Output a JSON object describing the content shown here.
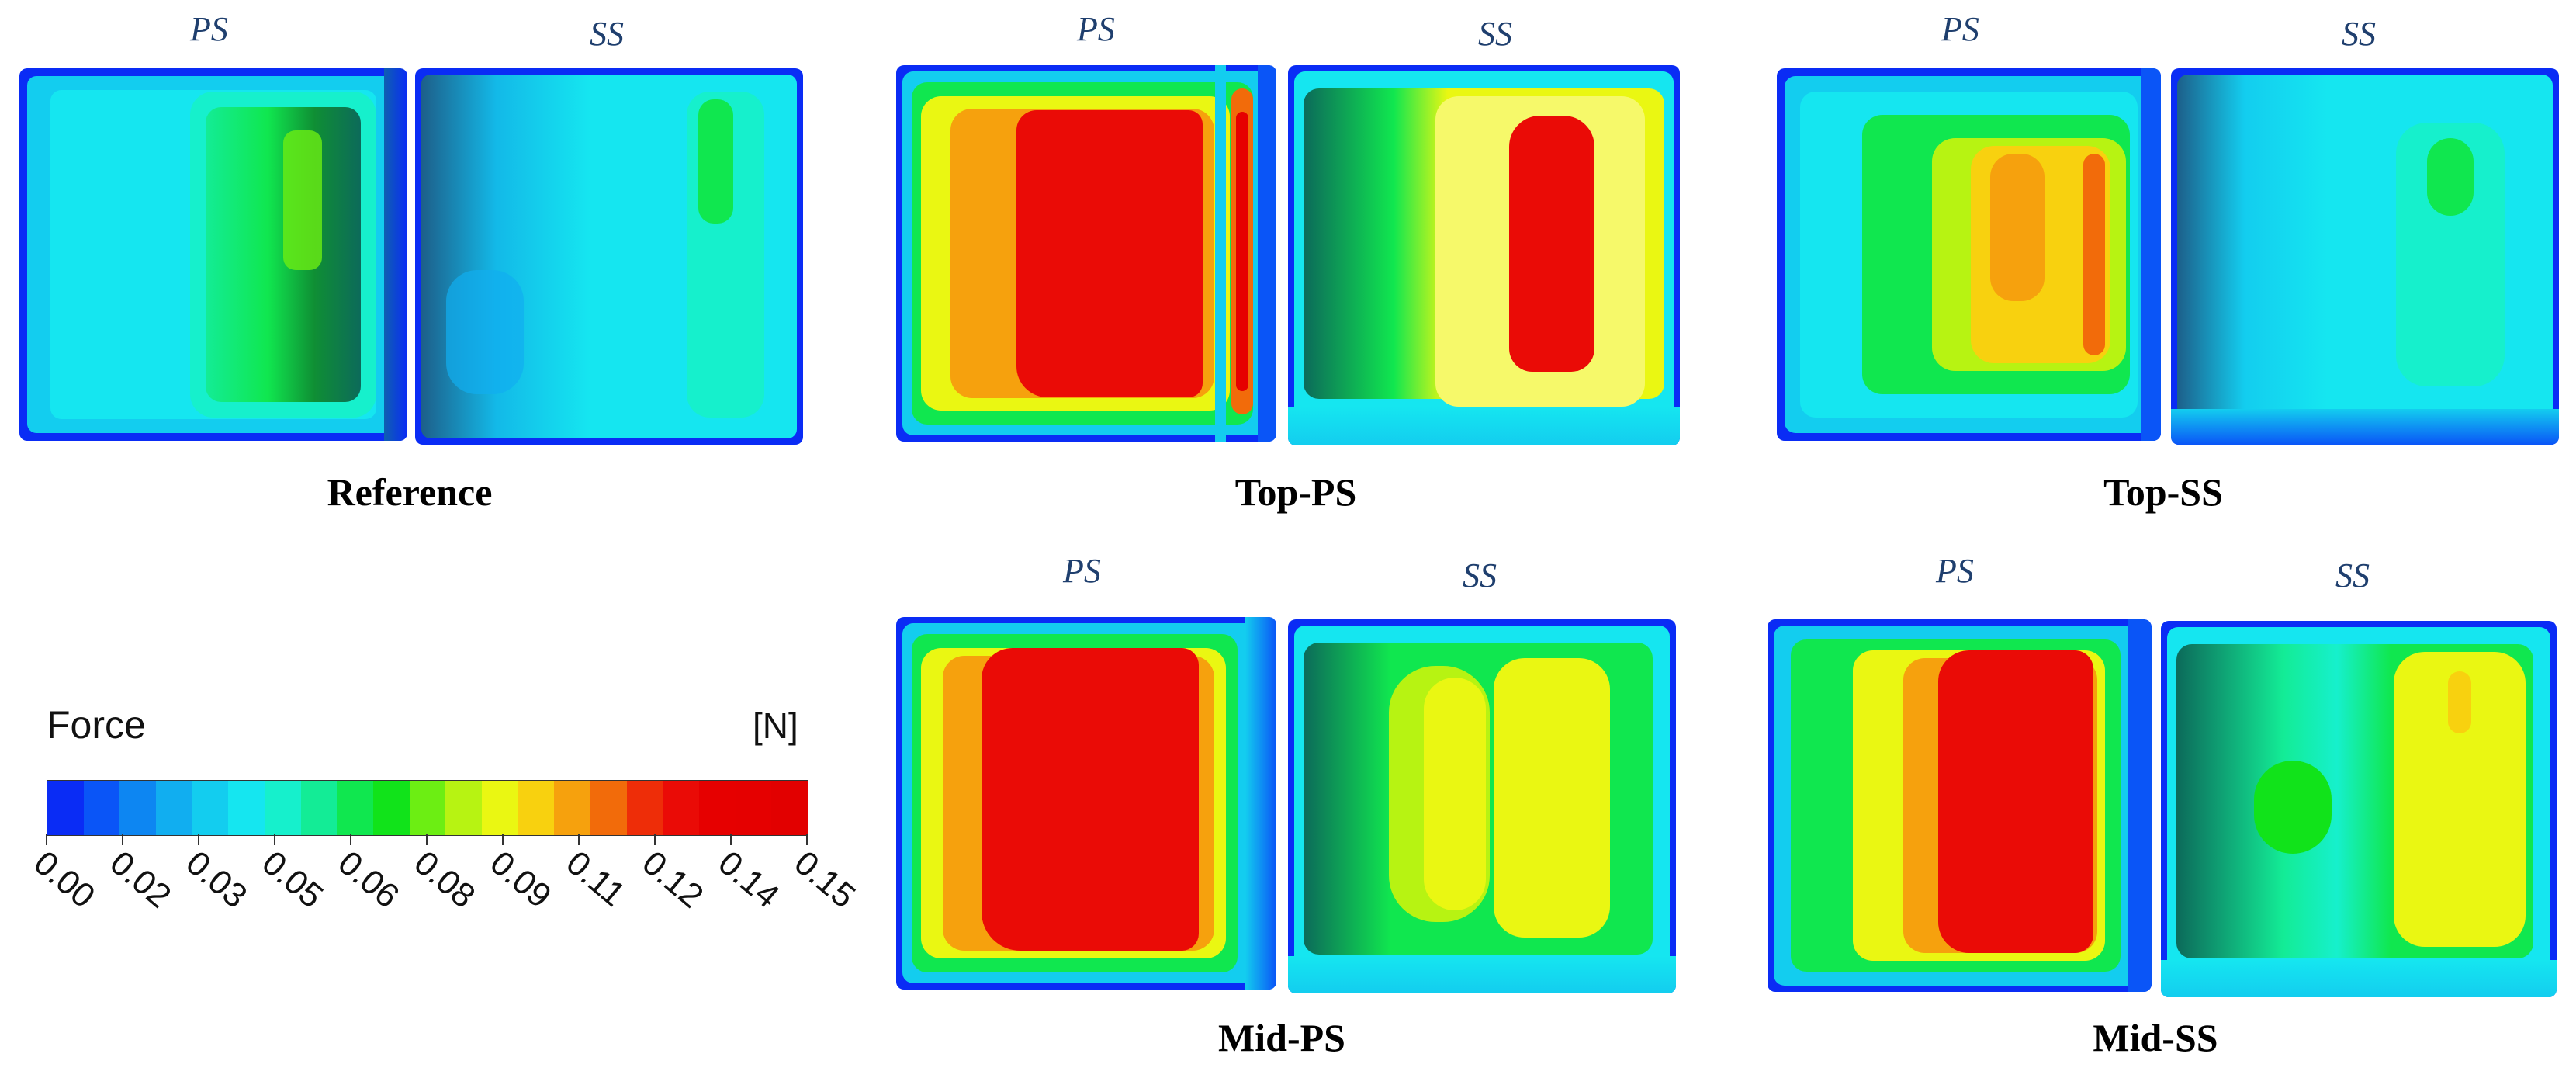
{
  "panels": [
    {
      "id": "reference",
      "case_label": "Reference",
      "ps_label": "PS",
      "ss_label": "SS"
    },
    {
      "id": "top-ps",
      "case_label": "Top-PS",
      "ps_label": "PS",
      "ss_label": "SS"
    },
    {
      "id": "top-ss",
      "case_label": "Top-SS",
      "ps_label": "PS",
      "ss_label": "SS"
    },
    {
      "id": "mid-ps",
      "case_label": "Mid-PS",
      "ps_label": "PS",
      "ss_label": "SS"
    },
    {
      "id": "mid-ss",
      "case_label": "Mid-SS",
      "ps_label": "PS",
      "ss_label": "SS"
    }
  ],
  "legend": {
    "title": "Force",
    "unit": "[N]",
    "ticks": [
      "0.00",
      "0.02",
      "0.03",
      "0.05",
      "0.06",
      "0.08",
      "0.09",
      "0.11",
      "0.12",
      "0.14",
      "0.15"
    ],
    "colors": [
      "#0a2cf5",
      "#0a55f7",
      "#0d86f2",
      "#11aef0",
      "#13cdef",
      "#15e6f0",
      "#16f0cc",
      "#13ec96",
      "#10e74f",
      "#11e31a",
      "#6cee13",
      "#b7f312",
      "#eaf712",
      "#f8d10f",
      "#f6a10d",
      "#f26b0a",
      "#ee2d08",
      "#ea0b06",
      "#e60000",
      "#e50000",
      "#e20000"
    ]
  },
  "colors": {
    "ps_ss_label": "#1f3f6e"
  }
}
